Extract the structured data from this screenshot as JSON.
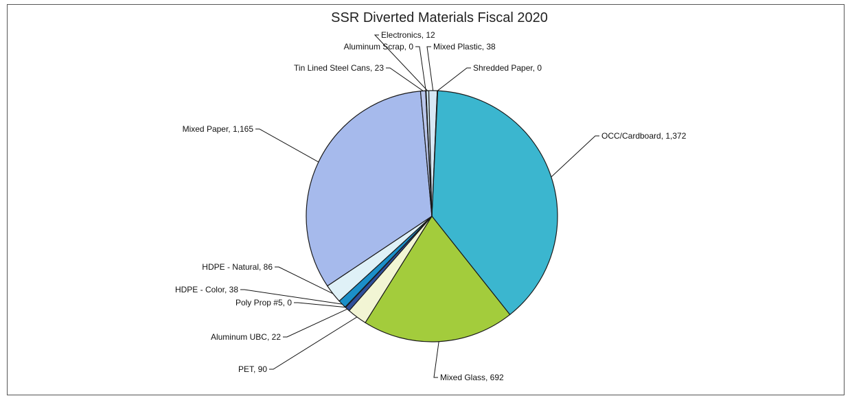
{
  "chart_data": {
    "type": "pie",
    "title": "SSR Diverted Materials Fiscal 2020",
    "slices": [
      {
        "label": "OCC/Cardboard",
        "value": 1372,
        "display": "OCC/Cardboard, 1,372",
        "color": "#3bb6cf"
      },
      {
        "label": "Mixed Glass",
        "value": 692,
        "display": "Mixed Glass, 692",
        "color": "#a3cc3c"
      },
      {
        "label": "PET",
        "value": 90,
        "display": "PET, 90",
        "color": "#f2f5d4"
      },
      {
        "label": "Aluminum UBC",
        "value": 22,
        "display": "Aluminum UBC, 22",
        "color": "#2f4f9a"
      },
      {
        "label": "Poly Prop #5",
        "value": 0,
        "display": "Poly Prop #5, 0",
        "color": "#2a5ec9"
      },
      {
        "label": "HDPE - Color",
        "value": 38,
        "display": "HDPE - Color, 38",
        "color": "#1b8fc8"
      },
      {
        "label": "HDPE - Natural",
        "value": 86,
        "display": "HDPE - Natural, 86",
        "color": "#dff1f7"
      },
      {
        "label": "Mixed Paper",
        "value": 1165,
        "display": "Mixed Paper, 1,165",
        "color": "#a6baec"
      },
      {
        "label": "Tin Lined Steel Cans",
        "value": 23,
        "display": "Tin Lined Steel Cans, 23",
        "color": "#b9c6ec"
      },
      {
        "label": "Aluminum Scrap",
        "value": 0,
        "display": "Aluminum Scrap, 0",
        "color": "#8fa8d8"
      },
      {
        "label": "Electronics",
        "value": 12,
        "display": "Electronics, 12",
        "color": "#cfe6f2"
      },
      {
        "label": "Mixed Plastic",
        "value": 38,
        "display": "Mixed Plastic, 38",
        "color": "#d8e8f5"
      },
      {
        "label": "Shredded Paper",
        "value": 0,
        "display": "Shredded Paper, 0",
        "color": "#e4eef7"
      }
    ]
  }
}
